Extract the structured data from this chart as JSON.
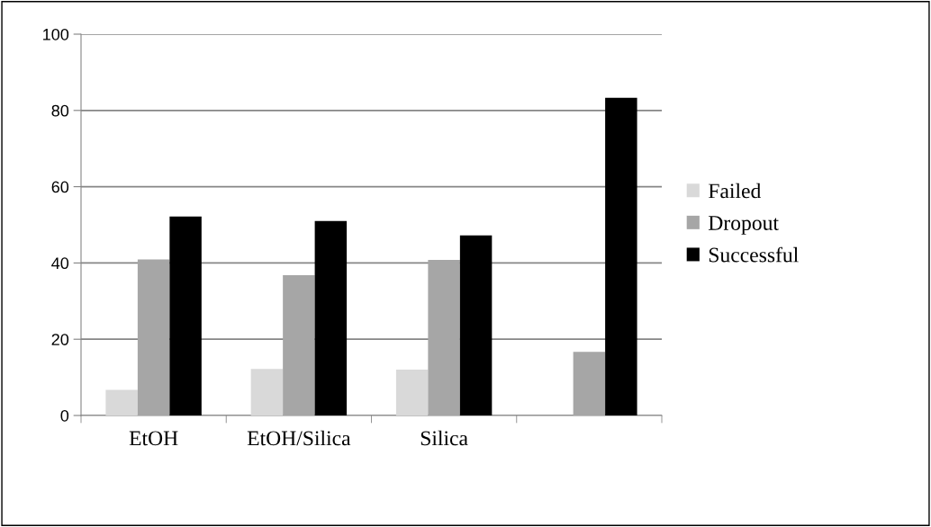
{
  "chart_data": {
    "type": "bar",
    "categories": [
      "EtOH",
      "EtOH/Silica",
      "Silica",
      null
    ],
    "series": [
      {
        "name": "Failed",
        "color": "#d9d9d9",
        "values": [
          6.7,
          12.2,
          12.0,
          0
        ]
      },
      {
        "name": "Dropout",
        "color": "#a6a6a6",
        "values": [
          40.9,
          36.8,
          40.8,
          16.7
        ]
      },
      {
        "name": "Successful",
        "color": "#000000",
        "values": [
          52.2,
          51.0,
          47.2,
          83.3
        ]
      }
    ],
    "ylim": [
      0,
      100
    ],
    "yticks": [
      0,
      20,
      40,
      60,
      80,
      100
    ],
    "grid": "y",
    "legend": "right"
  }
}
